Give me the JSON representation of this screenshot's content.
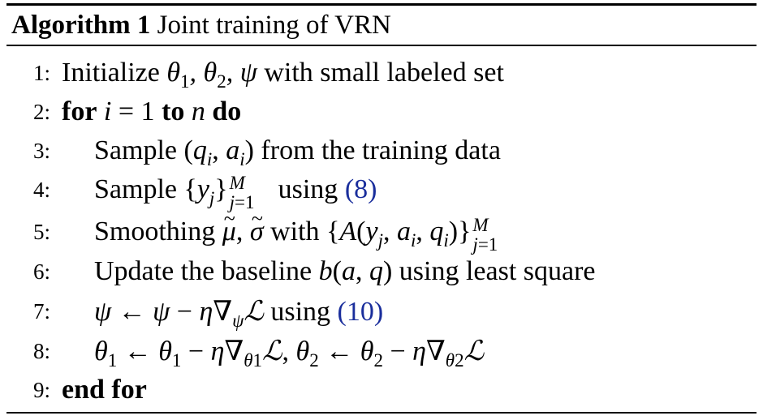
{
  "caption": {
    "label": "Algorithm 1",
    "title": "Joint training of VRN"
  },
  "lines": [
    {
      "num": "1:"
    },
    {
      "num": "2:"
    },
    {
      "num": "3:"
    },
    {
      "num": "4:"
    },
    {
      "num": "5:"
    },
    {
      "num": "6:"
    },
    {
      "num": "7:"
    },
    {
      "num": "8:"
    },
    {
      "num": "9:"
    }
  ],
  "text": {
    "l1": "Initialize",
    "l1_tail": "with small labeled set",
    "l2_for": "for",
    "l2_to": "to",
    "l2_do": "do",
    "l3": "Sample",
    "l3_tail": "from the training data",
    "l4": "Sample",
    "l4_using": "using",
    "l4_ref": "(8)",
    "l5": "Smoothing",
    "l5_with": "with",
    "l6": "Update the baseline",
    "l6_tail": "using least square",
    "l7_using": "using",
    "l7_ref": "(10)",
    "l9": "end for"
  }
}
